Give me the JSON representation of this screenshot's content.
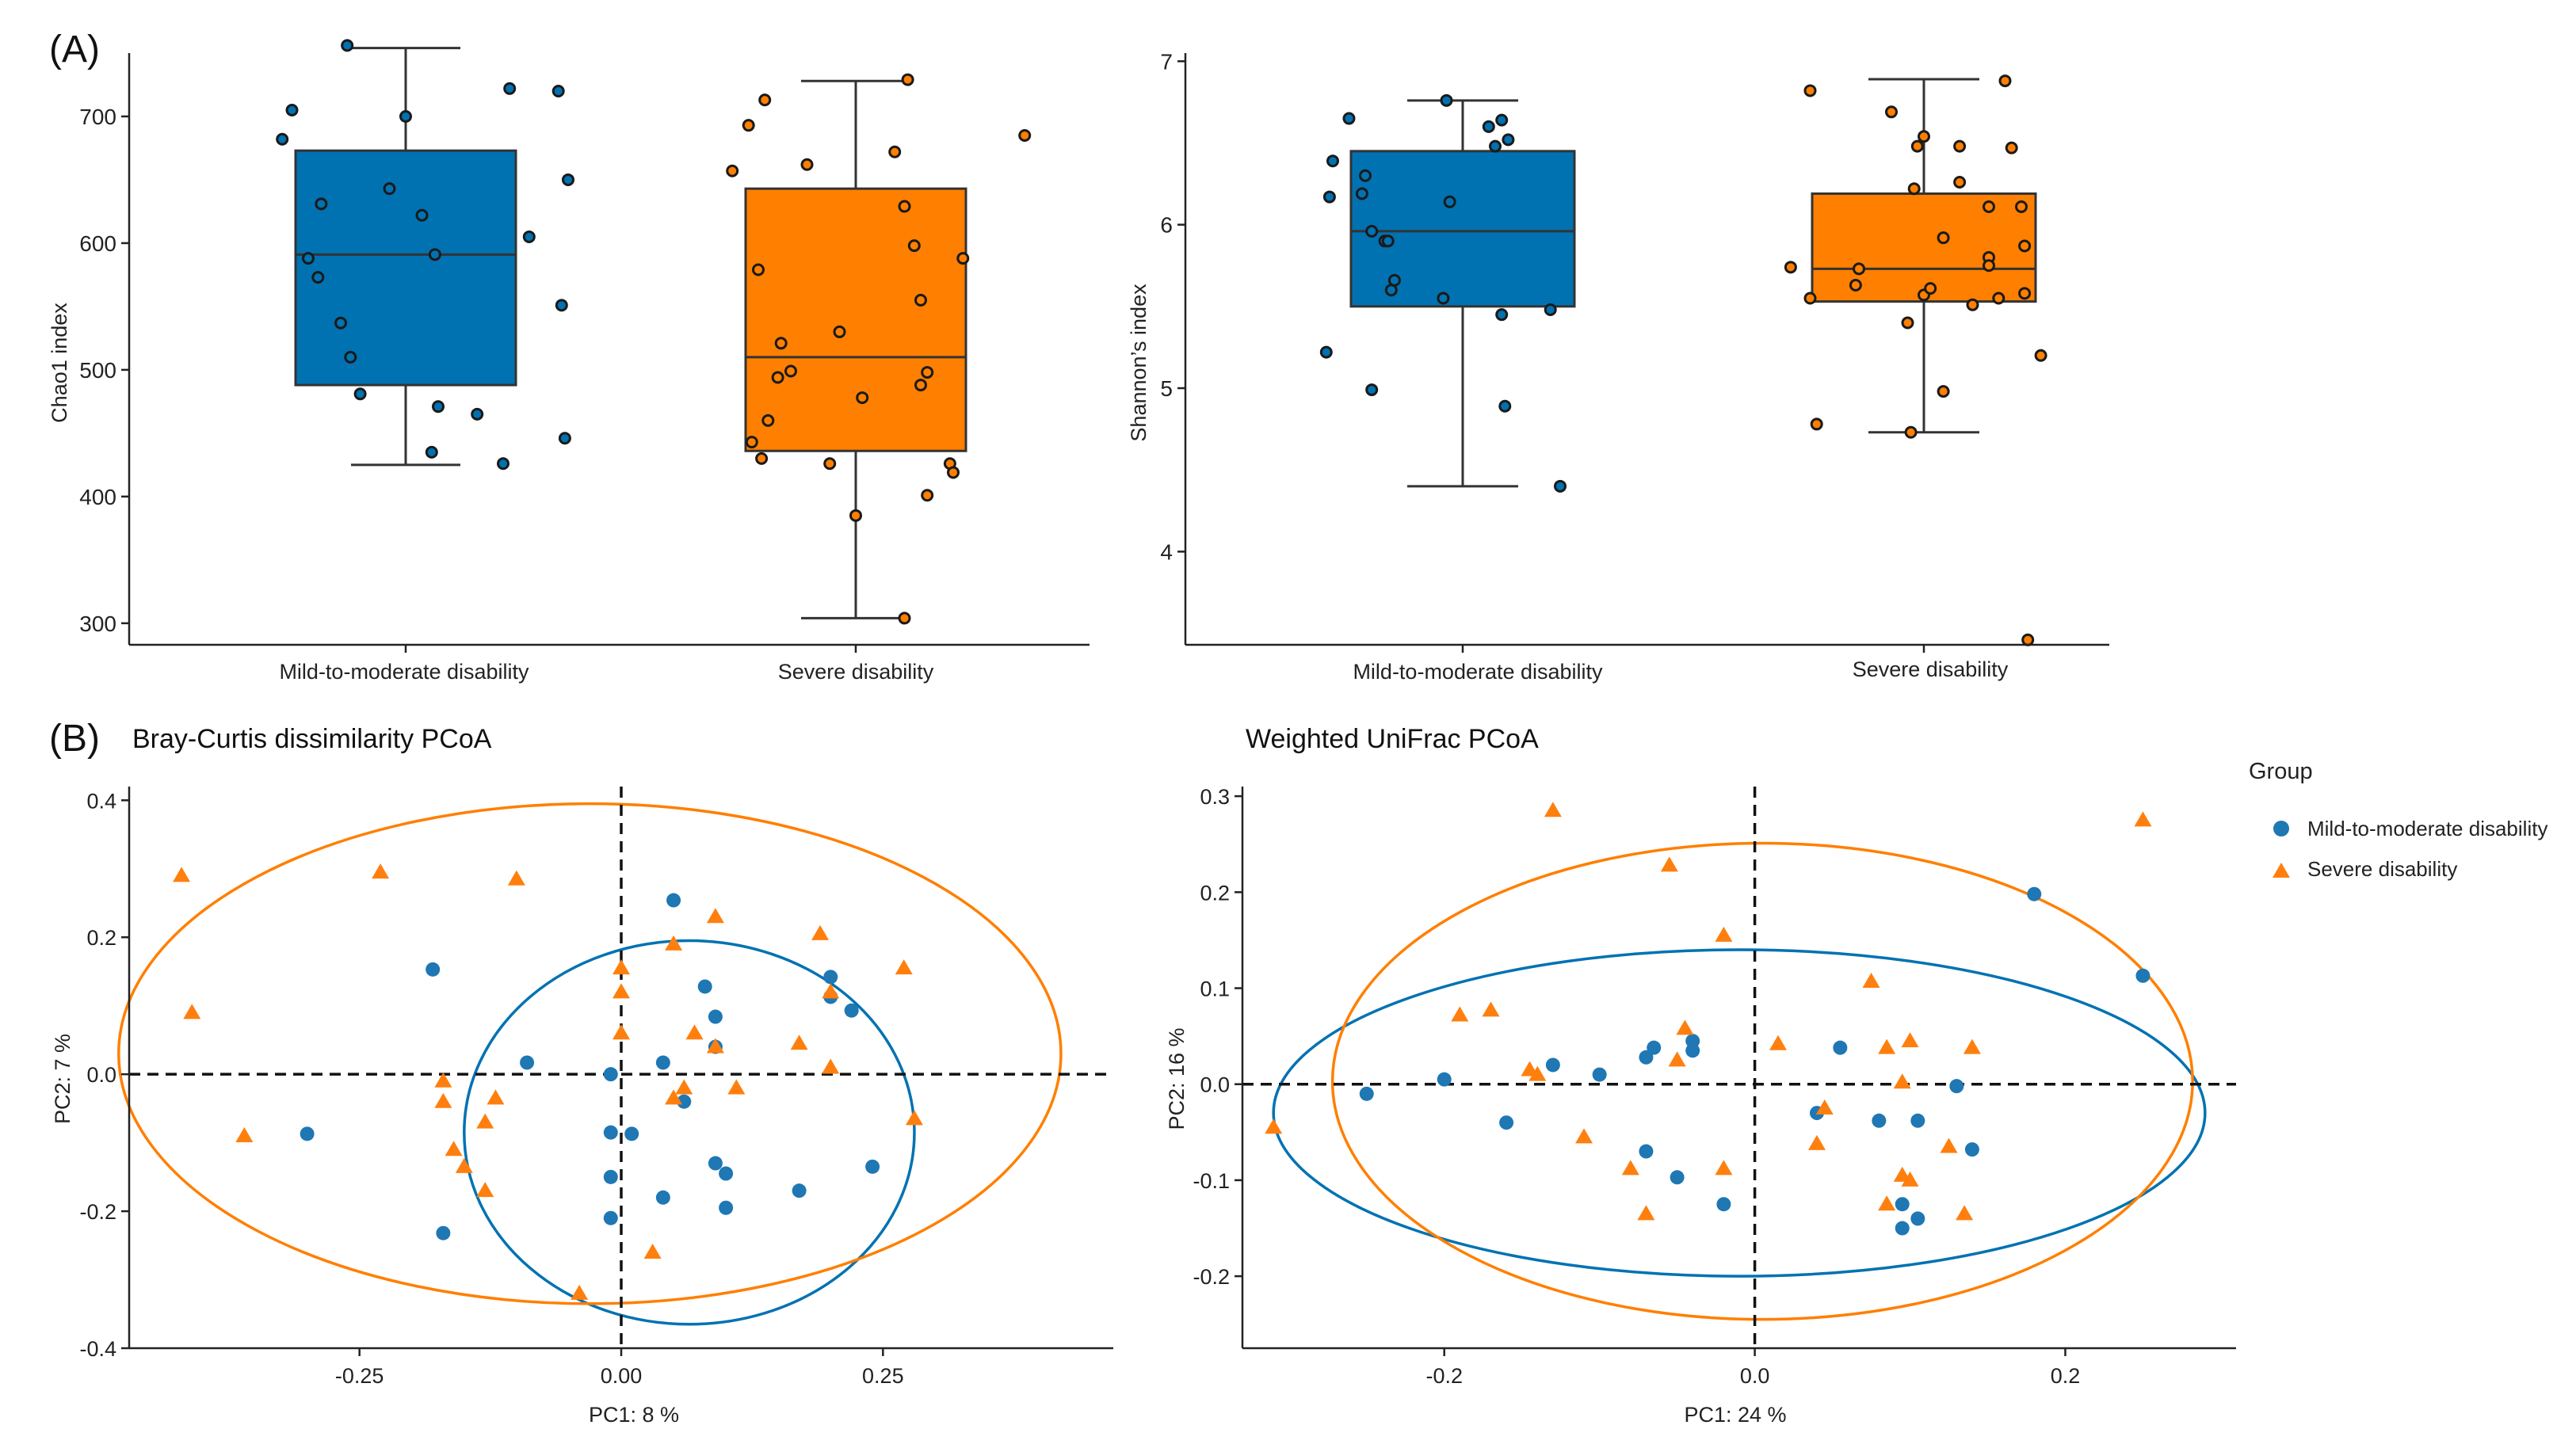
{
  "labels": {
    "panel_a": "(A)",
    "panel_b": "(B)"
  },
  "colors": {
    "mild": "#0072B2",
    "severe": "#FF7F00",
    "axis": "#222222",
    "box_line": "#333333"
  },
  "legend": {
    "title": "Group",
    "items": [
      {
        "label": "Mild-to-moderate disability",
        "shape": "circle",
        "color": "#1f77b4"
      },
      {
        "label": "Severe disability",
        "shape": "triangle",
        "color": "#ff7f0e"
      }
    ]
  },
  "chart_data": [
    {
      "id": "chao1",
      "type": "box",
      "title": "",
      "ylabel": "Chao1 index",
      "ylim": [
        283,
        750
      ],
      "yticks": [
        300,
        400,
        500,
        600,
        700
      ],
      "categories": [
        "Mild-to-moderate disability",
        "Severe disability"
      ],
      "boxes": [
        {
          "q1": 488,
          "median": 591,
          "q3": 673,
          "whisker_low": 425,
          "whisker_high": 754
        },
        {
          "q1": 436,
          "median": 510,
          "q3": 643,
          "whisker_low": 304,
          "whisker_high": 728
        }
      ],
      "points": [
        [
          [
            -0.38,
            682
          ],
          [
            -0.35,
            705
          ],
          [
            -0.3,
            588
          ],
          [
            -0.27,
            573
          ],
          [
            -0.26,
            631
          ],
          [
            -0.2,
            537
          ],
          [
            -0.17,
            510
          ],
          [
            -0.14,
            481
          ],
          [
            -0.18,
            756
          ],
          [
            -0.05,
            643
          ],
          [
            0.0,
            700
          ],
          [
            0.05,
            622
          ],
          [
            0.09,
            591
          ],
          [
            0.1,
            471
          ],
          [
            0.08,
            435
          ],
          [
            0.22,
            465
          ],
          [
            0.3,
            426
          ],
          [
            0.32,
            722
          ],
          [
            0.38,
            605
          ],
          [
            0.47,
            720
          ],
          [
            0.5,
            650
          ],
          [
            0.48,
            551
          ],
          [
            0.49,
            446
          ]
        ],
        [
          [
            -0.38,
            657
          ],
          [
            -0.33,
            693
          ],
          [
            -0.28,
            713
          ],
          [
            -0.3,
            579
          ],
          [
            -0.32,
            443
          ],
          [
            -0.29,
            430
          ],
          [
            -0.27,
            460
          ],
          [
            -0.24,
            494
          ],
          [
            -0.23,
            521
          ],
          [
            -0.2,
            499
          ],
          [
            -0.15,
            662
          ],
          [
            -0.08,
            426
          ],
          [
            -0.05,
            530
          ],
          [
            0.0,
            385
          ],
          [
            0.02,
            478
          ],
          [
            0.12,
            672
          ],
          [
            0.15,
            629
          ],
          [
            0.18,
            598
          ],
          [
            0.2,
            555
          ],
          [
            0.2,
            488
          ],
          [
            0.22,
            498
          ],
          [
            0.22,
            401
          ],
          [
            0.29,
            426
          ],
          [
            0.3,
            419
          ],
          [
            0.16,
            729
          ],
          [
            0.33,
            588
          ],
          [
            0.52,
            685
          ],
          [
            0.15,
            304
          ]
        ]
      ]
    },
    {
      "id": "shannon",
      "type": "box",
      "title": "",
      "ylabel": "Shannon’s index",
      "ylim": [
        3.43,
        7.05
      ],
      "yticks": [
        4,
        5,
        6,
        7
      ],
      "categories": [
        "Mild-to-moderate disability",
        "Severe disability"
      ],
      "boxes": [
        {
          "q1": 5.5,
          "median": 5.96,
          "q3": 6.45,
          "whisker_low": 4.4,
          "whisker_high": 6.76
        },
        {
          "q1": 5.53,
          "median": 5.73,
          "q3": 6.19,
          "whisker_low": 4.73,
          "whisker_high": 6.89
        }
      ],
      "points": [
        [
          [
            -0.42,
            5.22
          ],
          [
            -0.41,
            6.17
          ],
          [
            -0.4,
            6.39
          ],
          [
            -0.35,
            6.65
          ],
          [
            -0.31,
            6.19
          ],
          [
            -0.3,
            6.3
          ],
          [
            -0.28,
            5.96
          ],
          [
            -0.28,
            4.99
          ],
          [
            -0.24,
            5.9
          ],
          [
            -0.23,
            5.9
          ],
          [
            -0.22,
            5.6
          ],
          [
            -0.21,
            5.66
          ],
          [
            -0.06,
            5.55
          ],
          [
            -0.04,
            6.14
          ],
          [
            -0.05,
            6.76
          ],
          [
            0.08,
            6.6
          ],
          [
            0.1,
            6.48
          ],
          [
            0.12,
            5.45
          ],
          [
            0.12,
            6.64
          ],
          [
            0.14,
            6.52
          ],
          [
            0.13,
            4.89
          ],
          [
            0.27,
            5.48
          ],
          [
            0.3,
            4.4
          ]
        ],
        [
          [
            -0.41,
            5.74
          ],
          [
            -0.35,
            5.55
          ],
          [
            -0.33,
            4.78
          ],
          [
            -0.35,
            6.82
          ],
          [
            -0.2,
            5.73
          ],
          [
            -0.21,
            5.63
          ],
          [
            -0.1,
            6.69
          ],
          [
            -0.05,
            5.4
          ],
          [
            -0.04,
            4.73
          ],
          [
            -0.03,
            6.22
          ],
          [
            -0.02,
            6.48
          ],
          [
            0.0,
            6.54
          ],
          [
            0.0,
            5.57
          ],
          [
            0.02,
            5.61
          ],
          [
            0.06,
            4.98
          ],
          [
            0.06,
            5.92
          ],
          [
            0.11,
            6.48
          ],
          [
            0.11,
            6.26
          ],
          [
            0.15,
            5.51
          ],
          [
            0.2,
            5.8
          ],
          [
            0.2,
            5.75
          ],
          [
            0.2,
            6.11
          ],
          [
            0.23,
            5.55
          ],
          [
            0.25,
            6.88
          ],
          [
            0.27,
            6.47
          ],
          [
            0.3,
            6.11
          ],
          [
            0.31,
            5.87
          ],
          [
            0.31,
            5.58
          ],
          [
            0.36,
            5.2
          ],
          [
            0.32,
            3.46
          ]
        ]
      ]
    },
    {
      "id": "bray-curtis",
      "type": "scatter",
      "title": "Bray-Curtis dissimilarity PCoA",
      "xlabel": "PC1:  8 %",
      "ylabel": "PC2:  7 %",
      "xlim": [
        -0.47,
        0.47
      ],
      "ylim": [
        -0.4,
        0.42
      ],
      "xticks": [
        -0.25,
        0.0,
        0.25
      ],
      "xtick_labels": [
        "-0.25",
        "0.00",
        "0.25"
      ],
      "yticks": [
        -0.4,
        -0.2,
        0.0,
        0.2,
        0.4
      ],
      "ytick_labels": [
        "-0.4",
        "-0.2",
        "0.0",
        "0.2",
        "0.4"
      ],
      "series": [
        {
          "name": "Mild-to-moderate disability",
          "points": [
            [
              -0.3,
              -0.087
            ],
            [
              -0.18,
              0.153
            ],
            [
              -0.17,
              -0.232
            ],
            [
              -0.09,
              0.017
            ],
            [
              -0.01,
              0.0
            ],
            [
              -0.01,
              -0.085
            ],
            [
              0.01,
              -0.087
            ],
            [
              -0.01,
              -0.15
            ],
            [
              -0.01,
              -0.21
            ],
            [
              0.04,
              0.017
            ],
            [
              0.04,
              -0.18
            ],
            [
              0.05,
              0.254
            ],
            [
              0.06,
              -0.04
            ],
            [
              0.08,
              0.128
            ],
            [
              0.09,
              0.084
            ],
            [
              0.09,
              0.04
            ],
            [
              0.09,
              -0.13
            ],
            [
              0.1,
              -0.145
            ],
            [
              0.1,
              -0.195
            ],
            [
              0.2,
              0.142
            ],
            [
              0.2,
              0.113
            ],
            [
              0.22,
              0.093
            ],
            [
              0.17,
              -0.17
            ],
            [
              0.24,
              -0.135
            ]
          ]
        },
        {
          "name": "Severe disability",
          "points": [
            [
              -0.42,
              0.29
            ],
            [
              -0.41,
              0.09
            ],
            [
              -0.36,
              -0.09
            ],
            [
              -0.23,
              0.295
            ],
            [
              -0.1,
              0.285
            ],
            [
              -0.17,
              -0.01
            ],
            [
              -0.17,
              -0.04
            ],
            [
              -0.16,
              -0.11
            ],
            [
              -0.15,
              -0.135
            ],
            [
              -0.13,
              -0.07
            ],
            [
              -0.13,
              -0.17
            ],
            [
              -0.12,
              -0.035
            ],
            [
              -0.04,
              -0.32
            ],
            [
              0.0,
              0.155
            ],
            [
              0.0,
              0.12
            ],
            [
              0.0,
              0.06
            ],
            [
              0.03,
              -0.26
            ],
            [
              0.05,
              0.19
            ],
            [
              0.05,
              -0.035
            ],
            [
              0.06,
              -0.02
            ],
            [
              0.07,
              0.06
            ],
            [
              0.09,
              0.23
            ],
            [
              0.09,
              0.04
            ],
            [
              0.11,
              -0.02
            ],
            [
              0.17,
              0.045
            ],
            [
              0.19,
              0.205
            ],
            [
              0.2,
              0.12
            ],
            [
              0.2,
              0.01
            ],
            [
              0.27,
              0.155
            ],
            [
              0.28,
              -0.065
            ]
          ]
        }
      ],
      "ellipses": [
        {
          "group": "Mild-to-moderate disability",
          "cx": 0.065,
          "cy": -0.085,
          "rx": 0.215,
          "ry": 0.28
        },
        {
          "group": "Severe disability",
          "cx": -0.03,
          "cy": 0.03,
          "rx": 0.45,
          "ry": 0.365
        }
      ]
    },
    {
      "id": "weighted-unifrac",
      "type": "scatter",
      "title": "Weighted UniFrac PCoA",
      "xlabel": "PC1:  24 %",
      "ylabel": "PC2:  16 %",
      "xlim": [
        -0.33,
        0.31
      ],
      "ylim": [
        -0.275,
        0.31
      ],
      "xticks": [
        -0.2,
        0.0,
        0.2
      ],
      "xtick_labels": [
        "-0.2",
        "0.0",
        "0.2"
      ],
      "yticks": [
        -0.2,
        -0.1,
        0.0,
        0.1,
        0.2,
        0.3
      ],
      "ytick_labels": [
        "-0.2",
        "-0.1",
        "0.0",
        "0.1",
        "0.2",
        "0.3"
      ],
      "series": [
        {
          "name": "Mild-to-moderate disability",
          "points": [
            [
              -0.25,
              -0.01
            ],
            [
              -0.2,
              0.005
            ],
            [
              -0.16,
              -0.04
            ],
            [
              -0.13,
              0.02
            ],
            [
              -0.1,
              0.01
            ],
            [
              -0.07,
              -0.07
            ],
            [
              -0.07,
              0.028
            ],
            [
              -0.065,
              0.038
            ],
            [
              -0.05,
              -0.097
            ],
            [
              -0.04,
              0.045
            ],
            [
              -0.04,
              0.035
            ],
            [
              -0.02,
              -0.125
            ],
            [
              0.04,
              -0.03
            ],
            [
              0.055,
              0.038
            ],
            [
              0.08,
              -0.038
            ],
            [
              0.095,
              -0.125
            ],
            [
              0.095,
              -0.15
            ],
            [
              0.105,
              -0.038
            ],
            [
              0.105,
              -0.14
            ],
            [
              0.13,
              -0.002
            ],
            [
              0.14,
              -0.068
            ],
            [
              0.18,
              0.198
            ],
            [
              0.25,
              0.113
            ]
          ]
        },
        {
          "name": "Severe disability",
          "points": [
            [
              -0.31,
              -0.045
            ],
            [
              -0.19,
              0.072
            ],
            [
              -0.17,
              0.077
            ],
            [
              -0.13,
              0.285
            ],
            [
              -0.145,
              0.015
            ],
            [
              -0.14,
              0.01
            ],
            [
              -0.11,
              -0.055
            ],
            [
              -0.08,
              -0.088
            ],
            [
              -0.07,
              -0.135
            ],
            [
              -0.055,
              0.228
            ],
            [
              -0.05,
              0.025
            ],
            [
              -0.045,
              0.058
            ],
            [
              -0.02,
              0.155
            ],
            [
              -0.02,
              -0.088
            ],
            [
              0.015,
              0.042
            ],
            [
              0.04,
              -0.062
            ],
            [
              0.045,
              -0.025
            ],
            [
              0.075,
              0.107
            ],
            [
              0.085,
              0.038
            ],
            [
              0.085,
              -0.125
            ],
            [
              0.095,
              0.002
            ],
            [
              0.095,
              -0.095
            ],
            [
              0.1,
              0.045
            ],
            [
              0.1,
              -0.1
            ],
            [
              0.125,
              -0.065
            ],
            [
              0.135,
              -0.135
            ],
            [
              0.14,
              0.038
            ],
            [
              0.25,
              0.275
            ]
          ]
        }
      ],
      "ellipses": [
        {
          "group": "Mild-to-moderate disability",
          "cx": -0.01,
          "cy": -0.03,
          "rx": 0.3,
          "ry": 0.17
        },
        {
          "group": "Severe disability",
          "cx": 0.005,
          "cy": 0.003,
          "rx": 0.277,
          "ry": 0.248
        }
      ]
    }
  ]
}
